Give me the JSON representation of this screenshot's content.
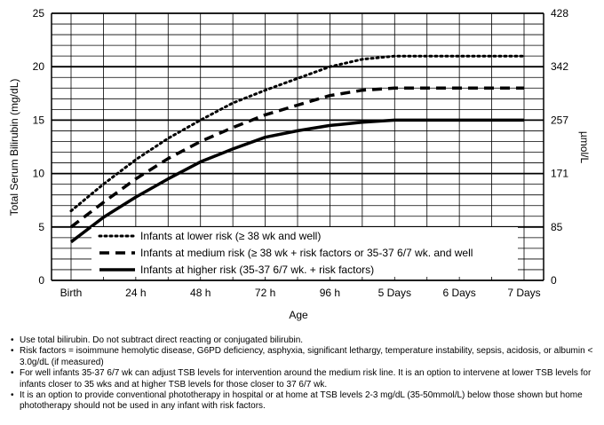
{
  "chart_data": {
    "type": "line",
    "title": "",
    "xlabel": "Age",
    "ylabel": "Total Serum Bilirubin (mg/dL)",
    "y2label": "µmol/L",
    "x_categories": [
      "Birth",
      "24 h",
      "48 h",
      "72 h",
      "96 h",
      "5 Days",
      "6 Days",
      "7 Days"
    ],
    "x_hours": [
      0,
      24,
      48,
      72,
      96,
      120,
      144,
      168
    ],
    "ylim": [
      0,
      25
    ],
    "y_ticks": [
      0,
      5,
      10,
      15,
      20,
      25
    ],
    "y2_ticks": [
      "0",
      "85",
      "171",
      "257",
      "342",
      "428"
    ],
    "grid": true,
    "legend_position": "lower-center",
    "series": [
      {
        "name": "Infants at lower risk (≥ 38 wk and well)",
        "style": "dotted",
        "x": [
          0,
          12,
          24,
          36,
          48,
          60,
          72,
          84,
          96,
          108,
          120,
          144,
          168
        ],
        "y": [
          6.5,
          9.0,
          11.3,
          13.3,
          15.0,
          16.6,
          17.8,
          18.9,
          20.0,
          20.7,
          21.0,
          21.0,
          21.0
        ]
      },
      {
        "name": "Infants at medium risk (≥ 38 wk + risk factors or 35-37 6/7 wk. and well",
        "style": "dashed",
        "x": [
          0,
          12,
          24,
          36,
          48,
          60,
          72,
          84,
          96,
          108,
          120,
          144,
          168
        ],
        "y": [
          5.0,
          7.3,
          9.5,
          11.4,
          13.0,
          14.3,
          15.5,
          16.4,
          17.3,
          17.8,
          18.0,
          18.0,
          18.0
        ]
      },
      {
        "name": "Infants at higher risk (35-37 6/7 wk. + risk factors)",
        "style": "solid",
        "x": [
          0,
          12,
          24,
          36,
          48,
          60,
          72,
          84,
          96,
          108,
          120,
          144,
          168
        ],
        "y": [
          3.6,
          5.9,
          7.8,
          9.5,
          11.1,
          12.3,
          13.4,
          14.0,
          14.5,
          14.8,
          15.0,
          15.0,
          15.0
        ]
      }
    ]
  },
  "notes": [
    "Use total bilirubin.  Do not subtract direct reacting or conjugated bilirubin.",
    "Risk factors = isoimmune hemolytic disease, G6PD deficiency, asphyxia, significant lethargy, temperature instability, sepsis, acidosis, or albumin < 3.0g/dL (if measured)",
    "For well infants 35-37 6/7 wk can adjust TSB levels for intervention around the medium risk line.  It is an option to intervene at lower TSB levels for infants closer to 35 wks and at higher TSB levels for those closer to 37 6/7 wk.",
    "It is an option to provide conventional phototherapy in hospital or at home at TSB levels 2-3 mg/dL (35-50mmol/L) below those shown but home phototherapy should not be used in any infant with risk factors."
  ]
}
